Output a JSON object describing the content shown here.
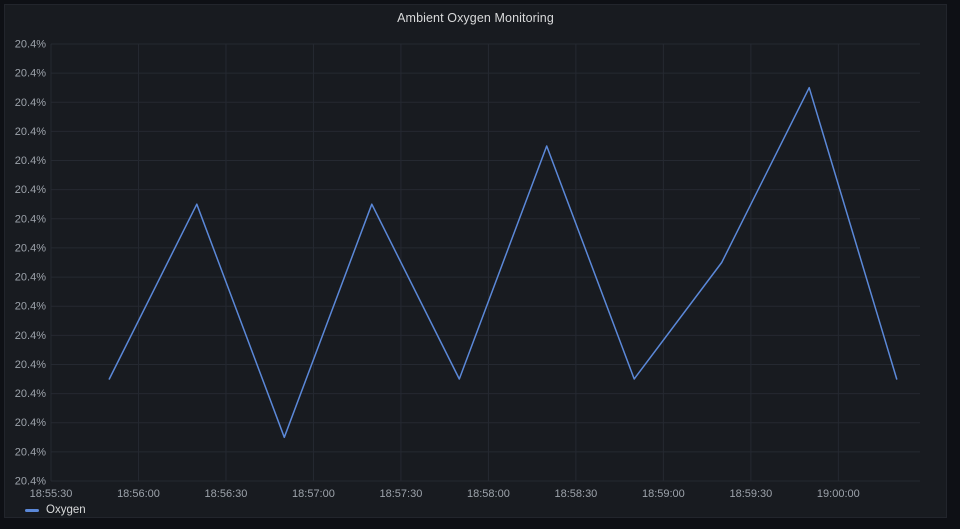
{
  "panel": {
    "title": "Ambient Oxygen Monitoring"
  },
  "legend": {
    "items": [
      {
        "label": "Oxygen",
        "color": "#5b88d8"
      }
    ]
  },
  "colors": {
    "page_background": "#0e1015",
    "panel_background": "#181b20",
    "grid": "#252931",
    "axis_text": "#9da3ab",
    "title_text": "#d8d9da",
    "series_oxygen": "#5b88d8"
  },
  "chart_data": {
    "type": "line",
    "title": "Ambient Oxygen Monitoring",
    "xlabel": "",
    "ylabel": "",
    "grid": true,
    "legend_position": "bottom-left",
    "x_tick_labels": [
      "18:55:30",
      "18:56:00",
      "18:56:30",
      "18:57:00",
      "18:57:30",
      "18:58:00",
      "18:58:30",
      "18:59:00",
      "18:59:30",
      "19:00:00"
    ],
    "x_tick_seconds": [
      0,
      30,
      60,
      90,
      120,
      150,
      180,
      210,
      240,
      270
    ],
    "xlim_seconds": [
      0,
      298
    ],
    "y_tick_labels": [
      "20.4%",
      "20.4%",
      "20.4%",
      "20.4%",
      "20.4%",
      "20.4%",
      "20.4%",
      "20.4%",
      "20.4%",
      "20.4%",
      "20.4%",
      "20.4%",
      "20.4%",
      "20.4%",
      "20.4%",
      "20.4%"
    ],
    "ylim": [
      20.3525,
      20.4275
    ],
    "y_unit": "%",
    "series": [
      {
        "name": "Oxygen",
        "color": "#5b88d8",
        "points": [
          {
            "time": "18:55:50",
            "seconds": 20,
            "value": 20.37
          },
          {
            "time": "18:56:20",
            "seconds": 50,
            "value": 20.4
          },
          {
            "time": "18:56:50",
            "seconds": 80,
            "value": 20.36
          },
          {
            "time": "18:57:20",
            "seconds": 110,
            "value": 20.4
          },
          {
            "time": "18:57:50",
            "seconds": 140,
            "value": 20.37
          },
          {
            "time": "18:58:20",
            "seconds": 170,
            "value": 20.41
          },
          {
            "time": "18:58:50",
            "seconds": 200,
            "value": 20.37
          },
          {
            "time": "18:59:20",
            "seconds": 230,
            "value": 20.39
          },
          {
            "time": "18:59:50",
            "seconds": 260,
            "value": 20.42
          },
          {
            "time": "19:00:20",
            "seconds": 290,
            "value": 20.37
          }
        ]
      }
    ]
  }
}
